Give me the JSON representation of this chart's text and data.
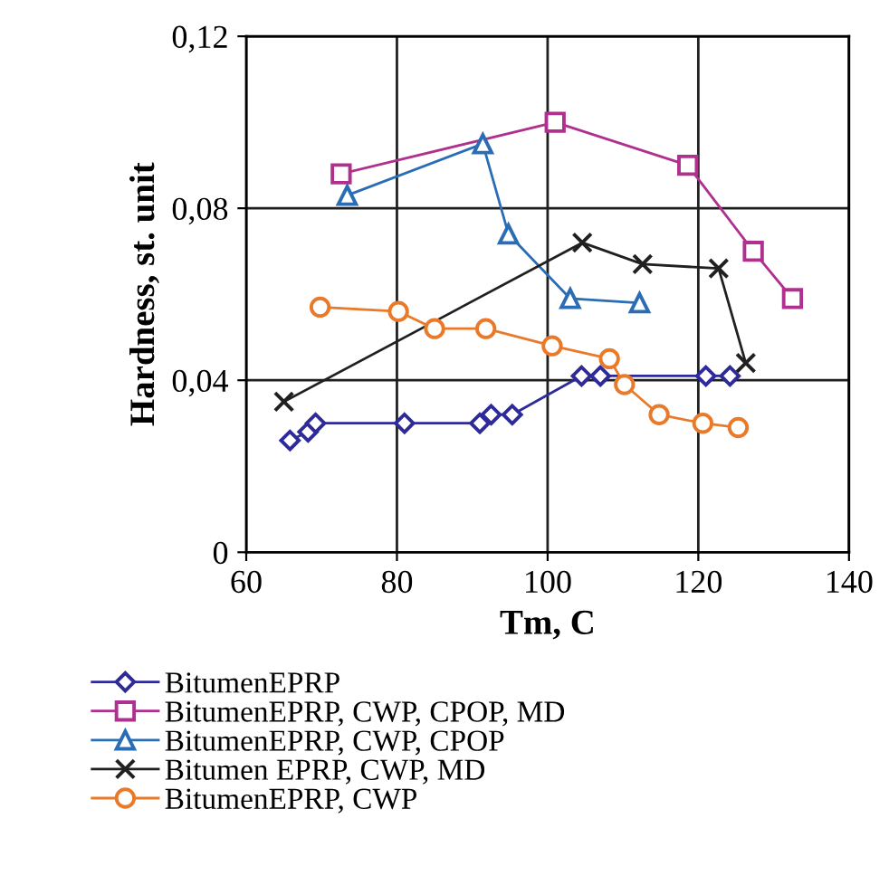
{
  "chart_data": {
    "type": "line",
    "xlabel": "Tm, C",
    "ylabel": "Hardness, st. unit",
    "xlim": [
      60,
      140
    ],
    "xticks": [
      60,
      80,
      100,
      120,
      140
    ],
    "ylim": [
      0,
      0.12
    ],
    "yticks": [
      {
        "value": 0,
        "label": "0"
      },
      {
        "value": 0.04,
        "label": "0,04"
      },
      {
        "value": 0.08,
        "label": "0,08"
      },
      {
        "value": 0.12,
        "label": "0,12"
      }
    ],
    "grid": true,
    "legend": "bottom",
    "line_style": "solid",
    "series": [
      {
        "name": "BitumenEPRP",
        "color": "#2e2a9a",
        "marker": "diamond",
        "x": [
          65.8,
          68.2,
          69.2,
          81,
          91,
          92.5,
          95.3,
          104.5,
          107,
          121,
          124.2
        ],
        "values": [
          0.026,
          0.028,
          0.03,
          0.03,
          0.03,
          0.032,
          0.032,
          0.041,
          0.041,
          0.041,
          0.041
        ]
      },
      {
        "name": "BitumenEPRP, CWP, CPOP, MD",
        "color": "#b0308f",
        "marker": "square",
        "x": [
          72.6,
          101,
          118.6,
          127.3,
          132.5
        ],
        "values": [
          0.088,
          0.1,
          0.09,
          0.07,
          0.059
        ]
      },
      {
        "name": "BitumenEPRP, CWP, CPOP",
        "color": "#2a6db5",
        "marker": "triangle",
        "x": [
          73.4,
          91.4,
          94.8,
          103,
          112.2
        ],
        "values": [
          0.083,
          0.095,
          0.074,
          0.059,
          0.058
        ]
      },
      {
        "name": "Bitumen EPRP, CWP, MD",
        "color": "#202020",
        "marker": "cross",
        "x": [
          65,
          104.6,
          112.6,
          122.7,
          126.3
        ],
        "values": [
          0.035,
          0.072,
          0.067,
          0.066,
          0.044
        ]
      },
      {
        "name": "BitumenEPRP, CWP",
        "color": "#e87a2a",
        "marker": "circle",
        "x": [
          69.8,
          80.2,
          85,
          91.8,
          100.6,
          108.2,
          110.2,
          114.8,
          120.6,
          125.3
        ],
        "values": [
          0.057,
          0.056,
          0.052,
          0.052,
          0.048,
          0.045,
          0.039,
          0.032,
          0.03,
          0.029
        ]
      }
    ]
  }
}
